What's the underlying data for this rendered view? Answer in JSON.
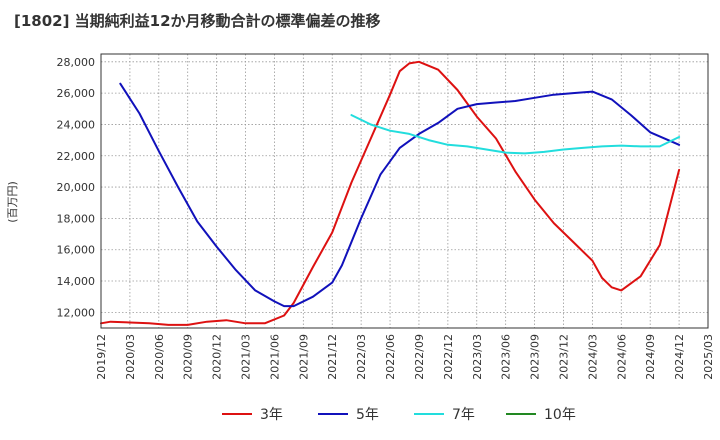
{
  "chart_data": {
    "type": "line",
    "title": "[1802]  当期純利益12か月移動合計の標準偏差の推移",
    "ylabel": "(百万円)",
    "xlabel": "",
    "ylim": [
      11000,
      28500
    ],
    "yticks": [
      12000,
      14000,
      16000,
      18000,
      20000,
      22000,
      24000,
      26000,
      28000
    ],
    "ytick_labels": [
      "12,000",
      "14,000",
      "16,000",
      "18,000",
      "20,000",
      "22,000",
      "24,000",
      "26,000",
      "28,000"
    ],
    "xlim": [
      "2019-12",
      "2025-03"
    ],
    "xticks": [
      "2019/12",
      "2020/03",
      "2020/06",
      "2020/09",
      "2020/12",
      "2021/03",
      "2021/06",
      "2021/09",
      "2021/12",
      "2022/03",
      "2022/06",
      "2022/09",
      "2022/12",
      "2023/03",
      "2023/06",
      "2023/09",
      "2023/12",
      "2024/03",
      "2024/06",
      "2024/09",
      "2024/12",
      "2025/03"
    ],
    "grid": true,
    "legend_position": "bottom",
    "series": [
      {
        "name": "3年",
        "color": "#dd1111",
        "x": [
          "2019-12",
          "2020-01",
          "2020-03",
          "2020-05",
          "2020-07",
          "2020-09",
          "2020-11",
          "2021-01",
          "2021-03",
          "2021-05",
          "2021-07",
          "2021-08",
          "2021-10",
          "2021-12",
          "2022-02",
          "2022-04",
          "2022-06",
          "2022-07",
          "2022-08",
          "2022-09",
          "2022-11",
          "2023-01",
          "2023-03",
          "2023-05",
          "2023-07",
          "2023-09",
          "2023-11",
          "2024-01",
          "2024-03",
          "2024-04",
          "2024-05",
          "2024-06",
          "2024-08",
          "2024-10",
          "2024-12"
        ],
        "values": [
          11300,
          11400,
          11350,
          11300,
          11200,
          11200,
          11400,
          11500,
          11300,
          11300,
          11800,
          12600,
          14900,
          17100,
          20300,
          23100,
          25900,
          27400,
          27900,
          28000,
          27500,
          26200,
          24500,
          23100,
          21000,
          19200,
          17700,
          16500,
          15300,
          14200,
          13600,
          13400,
          14300,
          16300,
          21100
        ]
      },
      {
        "name": "5年",
        "color": "#1111bb",
        "x": [
          "2020-02",
          "2020-04",
          "2020-06",
          "2020-08",
          "2020-10",
          "2020-12",
          "2021-02",
          "2021-04",
          "2021-06",
          "2021-07",
          "2021-08",
          "2021-10",
          "2021-12",
          "2022-01",
          "2022-03",
          "2022-05",
          "2022-07",
          "2022-09",
          "2022-11",
          "2023-01",
          "2023-03",
          "2023-05",
          "2023-07",
          "2023-09",
          "2023-11",
          "2024-01",
          "2024-03",
          "2024-05",
          "2024-07",
          "2024-09",
          "2024-12"
        ],
        "values": [
          26600,
          24700,
          22300,
          20000,
          17800,
          16200,
          14700,
          13400,
          12700,
          12400,
          12400,
          13000,
          13900,
          15000,
          18000,
          20800,
          22500,
          23400,
          24100,
          25000,
          25300,
          25400,
          25500,
          25700,
          25900,
          26000,
          26100,
          25600,
          24600,
          23500,
          22700
        ]
      },
      {
        "name": "7年",
        "color": "#22dddd",
        "x": [
          "2022-02",
          "2022-04",
          "2022-06",
          "2022-08",
          "2022-10",
          "2022-12",
          "2023-02",
          "2023-04",
          "2023-06",
          "2023-08",
          "2023-10",
          "2023-12",
          "2024-02",
          "2024-04",
          "2024-06",
          "2024-08",
          "2024-10",
          "2024-12"
        ],
        "values": [
          24600,
          24000,
          23600,
          23400,
          23000,
          22700,
          22600,
          22400,
          22200,
          22150,
          22250,
          22400,
          22500,
          22600,
          22650,
          22600,
          22600,
          23200
        ]
      },
      {
        "name": "10年",
        "color": "#228822",
        "x": [],
        "values": []
      }
    ]
  }
}
